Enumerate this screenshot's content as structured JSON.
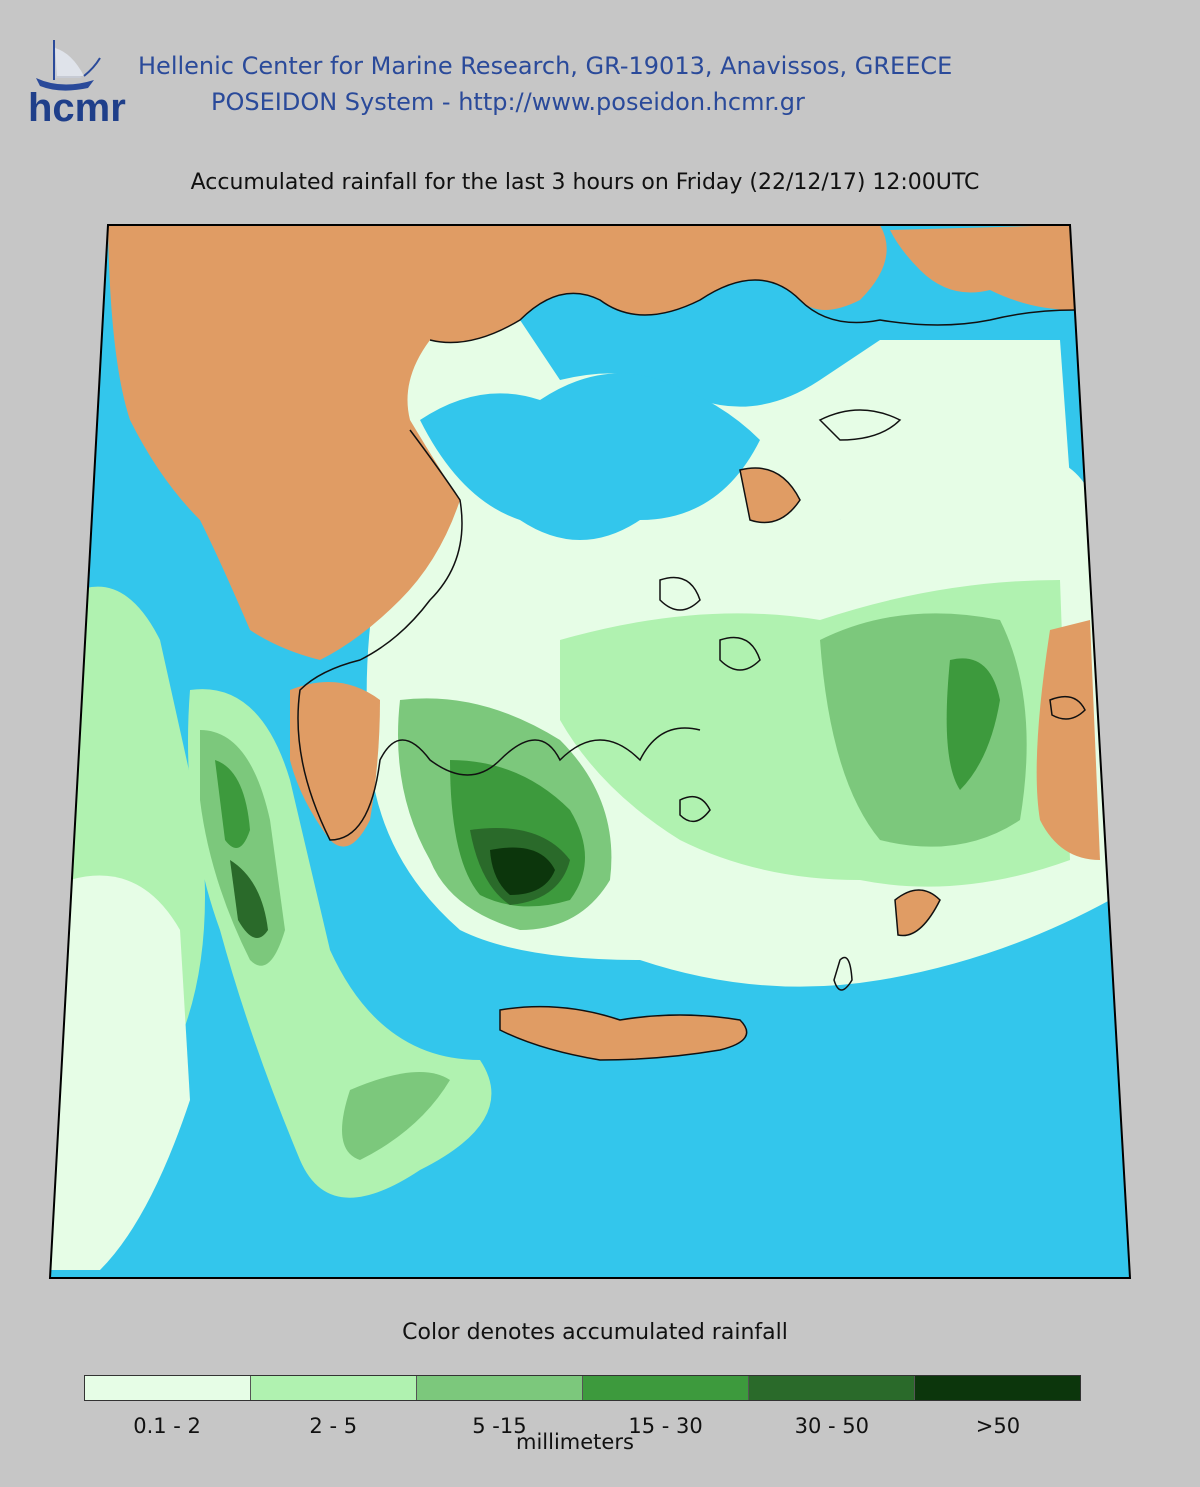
{
  "header": {
    "logo_text": "hcmr",
    "org_line1": "Hellenic Center for Marine Research, GR-19013, Anavissos, GREECE",
    "org_line2": "POSEIDON System - http://www.poseidon.hcmr.gr"
  },
  "map": {
    "title": "Accumulated rainfall for the last 3 hours on Friday (22/12/17) 12:00UTC",
    "colors": {
      "sea": "#33c6ec",
      "land_dry": "#e09c64",
      "background": "#c6c6c6",
      "coast": "#111111"
    }
  },
  "legend": {
    "subtitle": "Color denotes accumulated rainfall",
    "units": "millimeters",
    "bins": [
      {
        "label": "0.1 - 2",
        "color": "#e6fde6"
      },
      {
        "label": "2 - 5",
        "color": "#b0f2b0"
      },
      {
        "label": "5 -15",
        "color": "#7cc87c"
      },
      {
        "label": "15 - 30",
        "color": "#3d9a3d"
      },
      {
        "label": "30 - 50",
        "color": "#2a6a2a"
      },
      {
        "label": ">50",
        "color": "#0c360c"
      }
    ]
  }
}
